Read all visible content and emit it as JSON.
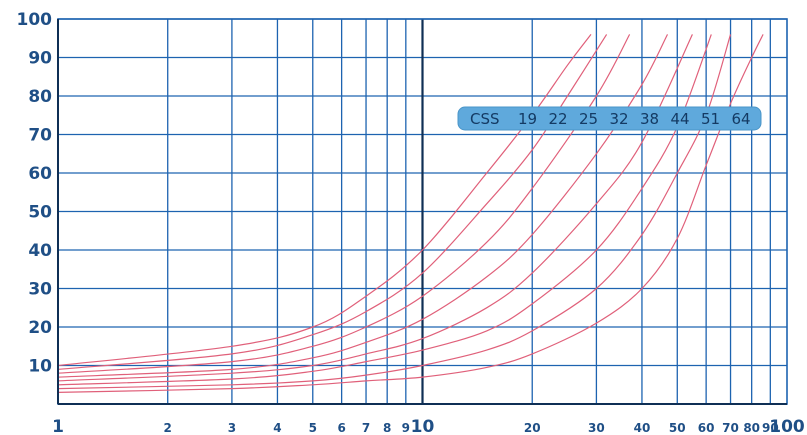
{
  "chart_data": {
    "type": "line",
    "x_scale": "log",
    "xlim": [
      1,
      100
    ],
    "ylim": [
      0,
      100
    ],
    "grid": true,
    "x_ticks": [
      {
        "value": 1,
        "label": "1"
      },
      {
        "value": 2,
        "label": "2"
      },
      {
        "value": 3,
        "label": "3"
      },
      {
        "value": 4,
        "label": "4"
      },
      {
        "value": 5,
        "label": "5"
      },
      {
        "value": 6,
        "label": "6"
      },
      {
        "value": 7,
        "label": "7"
      },
      {
        "value": 8,
        "label": "8"
      },
      {
        "value": 9,
        "label": "9"
      },
      {
        "value": 10,
        "label": "10"
      },
      {
        "value": 20,
        "label": "20"
      },
      {
        "value": 30,
        "label": "30"
      },
      {
        "value": 40,
        "label": "40"
      },
      {
        "value": 50,
        "label": "50"
      },
      {
        "value": 60,
        "label": "60"
      },
      {
        "value": 70,
        "label": "70"
      },
      {
        "value": 80,
        "label": "80"
      },
      {
        "value": 90,
        "label": "90"
      },
      {
        "value": 100,
        "label": "100"
      }
    ],
    "y_ticks": [
      10,
      20,
      30,
      40,
      50,
      60,
      70,
      80,
      90,
      100
    ],
    "legend": {
      "title": "CSS",
      "items": [
        "19",
        "22",
        "25",
        "32",
        "38",
        "44",
        "51",
        "64"
      ],
      "placement": "top-right"
    },
    "series": [
      {
        "name": "19",
        "points": [
          [
            1,
            10
          ],
          [
            3,
            15
          ],
          [
            5,
            20
          ],
          [
            7,
            28
          ],
          [
            10,
            40
          ],
          [
            15,
            60
          ],
          [
            20,
            75
          ],
          [
            25,
            88
          ],
          [
            29,
            96
          ]
        ]
      },
      {
        "name": "22",
        "points": [
          [
            1,
            9
          ],
          [
            3,
            13
          ],
          [
            5,
            18
          ],
          [
            7,
            24
          ],
          [
            10,
            34
          ],
          [
            15,
            52
          ],
          [
            20,
            66
          ],
          [
            25,
            80
          ],
          [
            32,
            96
          ]
        ]
      },
      {
        "name": "25",
        "points": [
          [
            1,
            8
          ],
          [
            3,
            11
          ],
          [
            5,
            15
          ],
          [
            7,
            20
          ],
          [
            10,
            28
          ],
          [
            15,
            42
          ],
          [
            20,
            56
          ],
          [
            30,
            80
          ],
          [
            37,
            96
          ]
        ]
      },
      {
        "name": "32",
        "points": [
          [
            1,
            7
          ],
          [
            3,
            9
          ],
          [
            5,
            12
          ],
          [
            7,
            16
          ],
          [
            10,
            22
          ],
          [
            15,
            33
          ],
          [
            20,
            44
          ],
          [
            30,
            65
          ],
          [
            40,
            83
          ],
          [
            47,
            96
          ]
        ]
      },
      {
        "name": "38",
        "points": [
          [
            1,
            6
          ],
          [
            3,
            8
          ],
          [
            5,
            10
          ],
          [
            7,
            13
          ],
          [
            10,
            17
          ],
          [
            15,
            25
          ],
          [
            20,
            34
          ],
          [
            30,
            52
          ],
          [
            40,
            68
          ],
          [
            55,
            96
          ]
        ]
      },
      {
        "name": "44",
        "points": [
          [
            1,
            5
          ],
          [
            3,
            6.5
          ],
          [
            5,
            8.5
          ],
          [
            7,
            11
          ],
          [
            10,
            14
          ],
          [
            15,
            19
          ],
          [
            20,
            26
          ],
          [
            30,
            40
          ],
          [
            40,
            56
          ],
          [
            50,
            72
          ],
          [
            62,
            96
          ]
        ]
      },
      {
        "name": "51",
        "points": [
          [
            1,
            4
          ],
          [
            3,
            5
          ],
          [
            5,
            6
          ],
          [
            7,
            7.5
          ],
          [
            10,
            10
          ],
          [
            15,
            14
          ],
          [
            20,
            19
          ],
          [
            30,
            30
          ],
          [
            40,
            44
          ],
          [
            50,
            60
          ],
          [
            60,
            75
          ],
          [
            70,
            96
          ]
        ]
      },
      {
        "name": "64",
        "points": [
          [
            1,
            3
          ],
          [
            3,
            4
          ],
          [
            5,
            5
          ],
          [
            7,
            6
          ],
          [
            10,
            7
          ],
          [
            15,
            9.5
          ],
          [
            20,
            13
          ],
          [
            30,
            21
          ],
          [
            40,
            30
          ],
          [
            50,
            43
          ],
          [
            60,
            62
          ],
          [
            70,
            78
          ],
          [
            80,
            90
          ],
          [
            86,
            96
          ]
        ]
      }
    ]
  }
}
